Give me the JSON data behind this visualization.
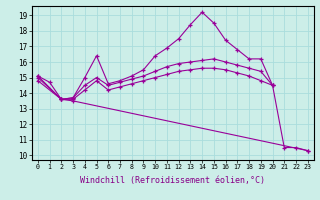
{
  "background_color": "#cceee8",
  "grid_color": "#aadddd",
  "line_color": "#990099",
  "xlabel": "Windchill (Refroidissement éolien,°C)",
  "xlabel_fontsize": 6,
  "ytick_labels": [
    "10",
    "11",
    "12",
    "13",
    "14",
    "15",
    "16",
    "17",
    "18",
    "19"
  ],
  "xtick_labels": [
    "0",
    "1",
    "2",
    "3",
    "4",
    "5",
    "6",
    "7",
    "8",
    "9",
    "10",
    "11",
    "12",
    "13",
    "14",
    "15",
    "16",
    "17",
    "18",
    "19",
    "20",
    "21",
    "22",
    "23"
  ],
  "xlim": [
    -0.5,
    23.5
  ],
  "ylim": [
    9.7,
    19.6
  ],
  "series": [
    {
      "x": [
        0,
        1,
        2,
        3,
        4,
        5,
        6,
        7,
        8,
        9,
        10,
        11,
        12,
        13,
        14,
        15,
        16,
        17,
        18,
        19,
        20,
        21,
        22,
        23
      ],
      "y": [
        15.1,
        14.7,
        13.6,
        13.7,
        15.0,
        16.4,
        14.6,
        14.8,
        15.1,
        15.5,
        16.4,
        16.9,
        17.5,
        18.4,
        19.2,
        18.5,
        17.4,
        16.8,
        16.2,
        16.2,
        14.5,
        10.5,
        10.5,
        10.3
      ]
    },
    {
      "x": [
        0,
        2,
        3,
        4,
        5,
        6,
        7,
        8,
        9,
        10,
        11,
        12,
        13,
        14,
        15,
        16,
        17,
        18,
        19,
        20
      ],
      "y": [
        15.1,
        13.6,
        13.7,
        14.5,
        15.0,
        14.5,
        14.7,
        14.9,
        15.1,
        15.4,
        15.7,
        15.9,
        16.0,
        16.1,
        16.2,
        16.0,
        15.8,
        15.6,
        15.4,
        14.5
      ]
    },
    {
      "x": [
        0,
        2,
        3,
        4,
        5,
        6,
        7,
        8,
        9,
        10,
        11,
        12,
        13,
        14,
        15,
        16,
        17,
        18,
        19,
        20
      ],
      "y": [
        15.0,
        13.6,
        13.6,
        14.2,
        14.8,
        14.2,
        14.4,
        14.6,
        14.8,
        15.0,
        15.2,
        15.4,
        15.5,
        15.6,
        15.6,
        15.5,
        15.3,
        15.1,
        14.8,
        14.5
      ]
    },
    {
      "x": [
        0,
        2,
        3,
        23
      ],
      "y": [
        14.8,
        13.6,
        13.5,
        10.3
      ]
    }
  ]
}
